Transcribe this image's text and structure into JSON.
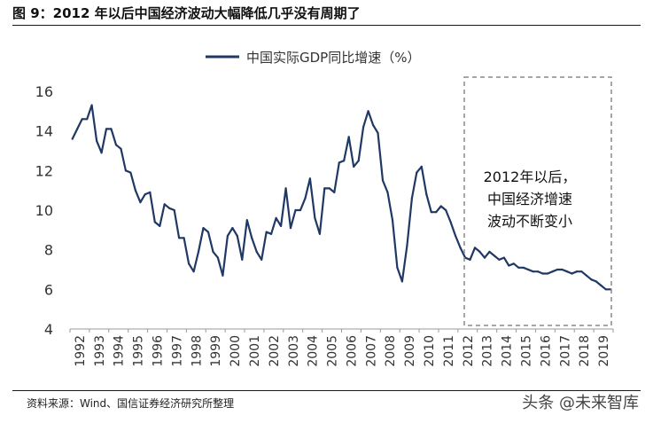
{
  "figure": {
    "title": "图 9：2012 年以后中国经济波动大幅降低几乎没有周期了",
    "source": "资料来源：Wind、国信证券经济研究所整理",
    "watermark": "头条 @未来智库"
  },
  "chart_data": {
    "type": "line",
    "legend": "中国实际GDP同比增速（%）",
    "legend_position": "top-center",
    "grid": false,
    "ylim": [
      4,
      16
    ],
    "yticks": [
      "4",
      "6",
      "8",
      "10",
      "12",
      "14",
      "16"
    ],
    "xticks": [
      "1992",
      "1993",
      "1994",
      "1995",
      "1996",
      "1997",
      "1998",
      "1999",
      "2000",
      "2001",
      "2002",
      "2003",
      "2004",
      "2005",
      "2006",
      "2007",
      "2008",
      "2009",
      "2010",
      "2011",
      "2012",
      "2013",
      "2014",
      "2015",
      "2016",
      "2017",
      "2018",
      "2019"
    ],
    "x_start": 1992,
    "x_end": 2020,
    "points_per_year": 4,
    "series": [
      {
        "color": "#1f3864",
        "values": [
          13.6,
          14.1,
          14.6,
          14.6,
          15.3,
          13.5,
          12.9,
          14.1,
          14.1,
          13.3,
          13.1,
          12.0,
          11.9,
          11.0,
          10.4,
          10.8,
          10.9,
          9.4,
          9.2,
          10.3,
          10.1,
          10.0,
          8.6,
          8.6,
          7.3,
          6.9,
          7.9,
          9.1,
          8.9,
          7.9,
          7.6,
          6.7,
          8.7,
          9.1,
          8.7,
          7.5,
          9.5,
          8.6,
          7.9,
          7.5,
          8.9,
          8.8,
          9.6,
          9.2,
          11.1,
          9.1,
          10.0,
          10.0,
          10.6,
          11.6,
          9.6,
          8.8,
          11.1,
          11.1,
          10.9,
          12.4,
          12.5,
          13.7,
          12.2,
          12.5,
          14.2,
          15.0,
          14.3,
          13.9,
          11.5,
          10.9,
          9.5,
          7.1,
          6.4,
          8.2,
          10.6,
          11.9,
          12.2,
          10.8,
          9.9,
          9.9,
          10.2,
          10.0,
          9.4,
          8.7,
          8.1,
          7.6,
          7.5,
          8.1,
          7.9,
          7.6,
          7.9,
          7.7,
          7.5,
          7.6,
          7.2,
          7.3,
          7.1,
          7.1,
          7.0,
          6.9,
          6.9,
          6.8,
          6.8,
          6.9,
          7.0,
          7.0,
          6.9,
          6.8,
          6.9,
          6.9,
          6.7,
          6.5,
          6.4,
          6.2,
          6.0,
          6.0
        ]
      }
    ],
    "highlight_box": {
      "style": "dashed",
      "color": "#8a8a8a"
    },
    "annotation": {
      "lines": [
        "2012年以后，",
        "中国经济增速",
        "波动不断变小"
      ]
    }
  }
}
